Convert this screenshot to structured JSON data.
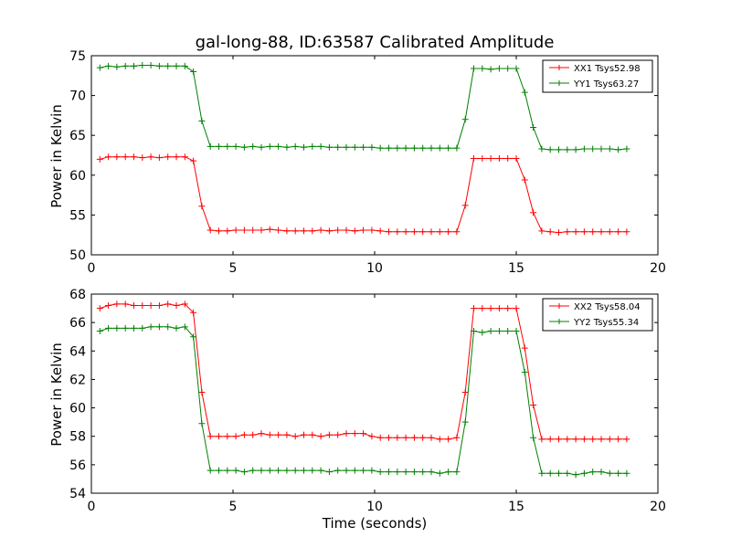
{
  "chart_data": [
    {
      "type": "line",
      "title": "gal-long-88, ID:63587 Calibrated Amplitude",
      "xlabel": "",
      "ylabel": "Power in Kelvin",
      "xlim": [
        0,
        20
      ],
      "ylim": [
        50,
        75
      ],
      "xticks": [
        0,
        5,
        10,
        15,
        20
      ],
      "yticks": [
        50,
        55,
        60,
        65,
        70,
        75
      ],
      "legend_position": "top-right",
      "x": [
        0.3,
        0.6,
        0.9,
        1.2,
        1.5,
        1.8,
        2.1,
        2.4,
        2.7,
        3.0,
        3.3,
        3.6,
        3.9,
        4.2,
        4.5,
        4.8,
        5.1,
        5.4,
        5.7,
        6.0,
        6.3,
        6.6,
        6.9,
        7.2,
        7.5,
        7.8,
        8.1,
        8.4,
        8.7,
        9.0,
        9.3,
        9.6,
        9.9,
        10.2,
        10.5,
        10.8,
        11.1,
        11.4,
        11.7,
        12.0,
        12.3,
        12.6,
        12.9,
        13.2,
        13.5,
        13.8,
        14.1,
        14.4,
        14.7,
        15.0,
        15.3,
        15.6,
        15.9,
        16.2,
        16.5,
        16.8,
        17.1,
        17.4,
        17.7,
        18.0,
        18.3,
        18.6,
        18.9
      ],
      "series": [
        {
          "name": "XX1 Tsys52.98",
          "color": "#ff0000",
          "values": [
            62.0,
            62.3,
            62.3,
            62.3,
            62.3,
            62.2,
            62.3,
            62.2,
            62.3,
            62.3,
            62.3,
            61.8,
            56.1,
            53.1,
            53.0,
            53.0,
            53.1,
            53.1,
            53.1,
            53.1,
            53.2,
            53.1,
            53.0,
            53.0,
            53.0,
            53.0,
            53.1,
            53.0,
            53.1,
            53.1,
            53.0,
            53.1,
            53.1,
            53.0,
            52.9,
            52.9,
            52.9,
            52.9,
            52.9,
            52.9,
            52.9,
            52.9,
            52.9,
            56.2,
            62.1,
            62.1,
            62.1,
            62.1,
            62.1,
            62.1,
            59.4,
            55.3,
            53.0,
            52.9,
            52.8,
            52.9,
            52.9,
            52.9,
            52.9,
            52.9,
            52.9,
            52.9,
            52.9
          ]
        },
        {
          "name": "YY1 Tsys63.27",
          "color": "#008000",
          "values": [
            73.5,
            73.7,
            73.6,
            73.7,
            73.7,
            73.8,
            73.8,
            73.7,
            73.7,
            73.7,
            73.7,
            73.0,
            66.8,
            63.6,
            63.6,
            63.6,
            63.6,
            63.5,
            63.6,
            63.5,
            63.6,
            63.6,
            63.5,
            63.6,
            63.5,
            63.6,
            63.6,
            63.5,
            63.5,
            63.5,
            63.5,
            63.5,
            63.5,
            63.4,
            63.4,
            63.4,
            63.4,
            63.4,
            63.4,
            63.4,
            63.4,
            63.4,
            63.4,
            67.0,
            73.4,
            73.4,
            73.3,
            73.4,
            73.4,
            73.4,
            70.4,
            66.0,
            63.3,
            63.2,
            63.2,
            63.2,
            63.2,
            63.3,
            63.3,
            63.3,
            63.3,
            63.2,
            63.3
          ]
        }
      ]
    },
    {
      "type": "line",
      "title": "",
      "xlabel": "Time (seconds)",
      "ylabel": "Power in Kelvin",
      "xlim": [
        0,
        20
      ],
      "ylim": [
        54,
        68
      ],
      "xticks": [
        0,
        5,
        10,
        15,
        20
      ],
      "yticks": [
        54,
        56,
        58,
        60,
        62,
        64,
        66,
        68
      ],
      "legend_position": "top-right",
      "x": [
        0.3,
        0.6,
        0.9,
        1.2,
        1.5,
        1.8,
        2.1,
        2.4,
        2.7,
        3.0,
        3.3,
        3.6,
        3.9,
        4.2,
        4.5,
        4.8,
        5.1,
        5.4,
        5.7,
        6.0,
        6.3,
        6.6,
        6.9,
        7.2,
        7.5,
        7.8,
        8.1,
        8.4,
        8.7,
        9.0,
        9.3,
        9.6,
        9.9,
        10.2,
        10.5,
        10.8,
        11.1,
        11.4,
        11.7,
        12.0,
        12.3,
        12.6,
        12.9,
        13.2,
        13.5,
        13.8,
        14.1,
        14.4,
        14.7,
        15.0,
        15.3,
        15.6,
        15.9,
        16.2,
        16.5,
        16.8,
        17.1,
        17.4,
        17.7,
        18.0,
        18.3,
        18.6,
        18.9
      ],
      "series": [
        {
          "name": "XX2 Tsys58.04",
          "color": "#ff0000",
          "values": [
            67.0,
            67.2,
            67.3,
            67.3,
            67.2,
            67.2,
            67.2,
            67.2,
            67.3,
            67.2,
            67.3,
            66.7,
            61.1,
            58.0,
            58.0,
            58.0,
            58.0,
            58.1,
            58.1,
            58.2,
            58.1,
            58.1,
            58.1,
            58.0,
            58.1,
            58.1,
            58.0,
            58.1,
            58.1,
            58.2,
            58.2,
            58.2,
            58.0,
            57.9,
            57.9,
            57.9,
            57.9,
            57.9,
            57.9,
            57.9,
            57.8,
            57.8,
            57.9,
            61.1,
            67.0,
            67.0,
            67.0,
            67.0,
            67.0,
            67.0,
            64.2,
            60.2,
            57.8,
            57.8,
            57.8,
            57.8,
            57.8,
            57.8,
            57.8,
            57.8,
            57.8,
            57.8,
            57.8
          ]
        },
        {
          "name": "YY2 Tsys55.34",
          "color": "#008000",
          "values": [
            65.4,
            65.6,
            65.6,
            65.6,
            65.6,
            65.6,
            65.7,
            65.7,
            65.7,
            65.6,
            65.7,
            65.0,
            58.9,
            55.6,
            55.6,
            55.6,
            55.6,
            55.5,
            55.6,
            55.6,
            55.6,
            55.6,
            55.6,
            55.6,
            55.6,
            55.6,
            55.6,
            55.5,
            55.6,
            55.6,
            55.6,
            55.6,
            55.6,
            55.5,
            55.5,
            55.5,
            55.5,
            55.5,
            55.5,
            55.5,
            55.4,
            55.5,
            55.5,
            59.0,
            65.4,
            65.3,
            65.4,
            65.4,
            65.4,
            65.4,
            62.5,
            57.9,
            55.4,
            55.4,
            55.4,
            55.4,
            55.3,
            55.4,
            55.5,
            55.5,
            55.4,
            55.4,
            55.4
          ]
        }
      ]
    }
  ]
}
